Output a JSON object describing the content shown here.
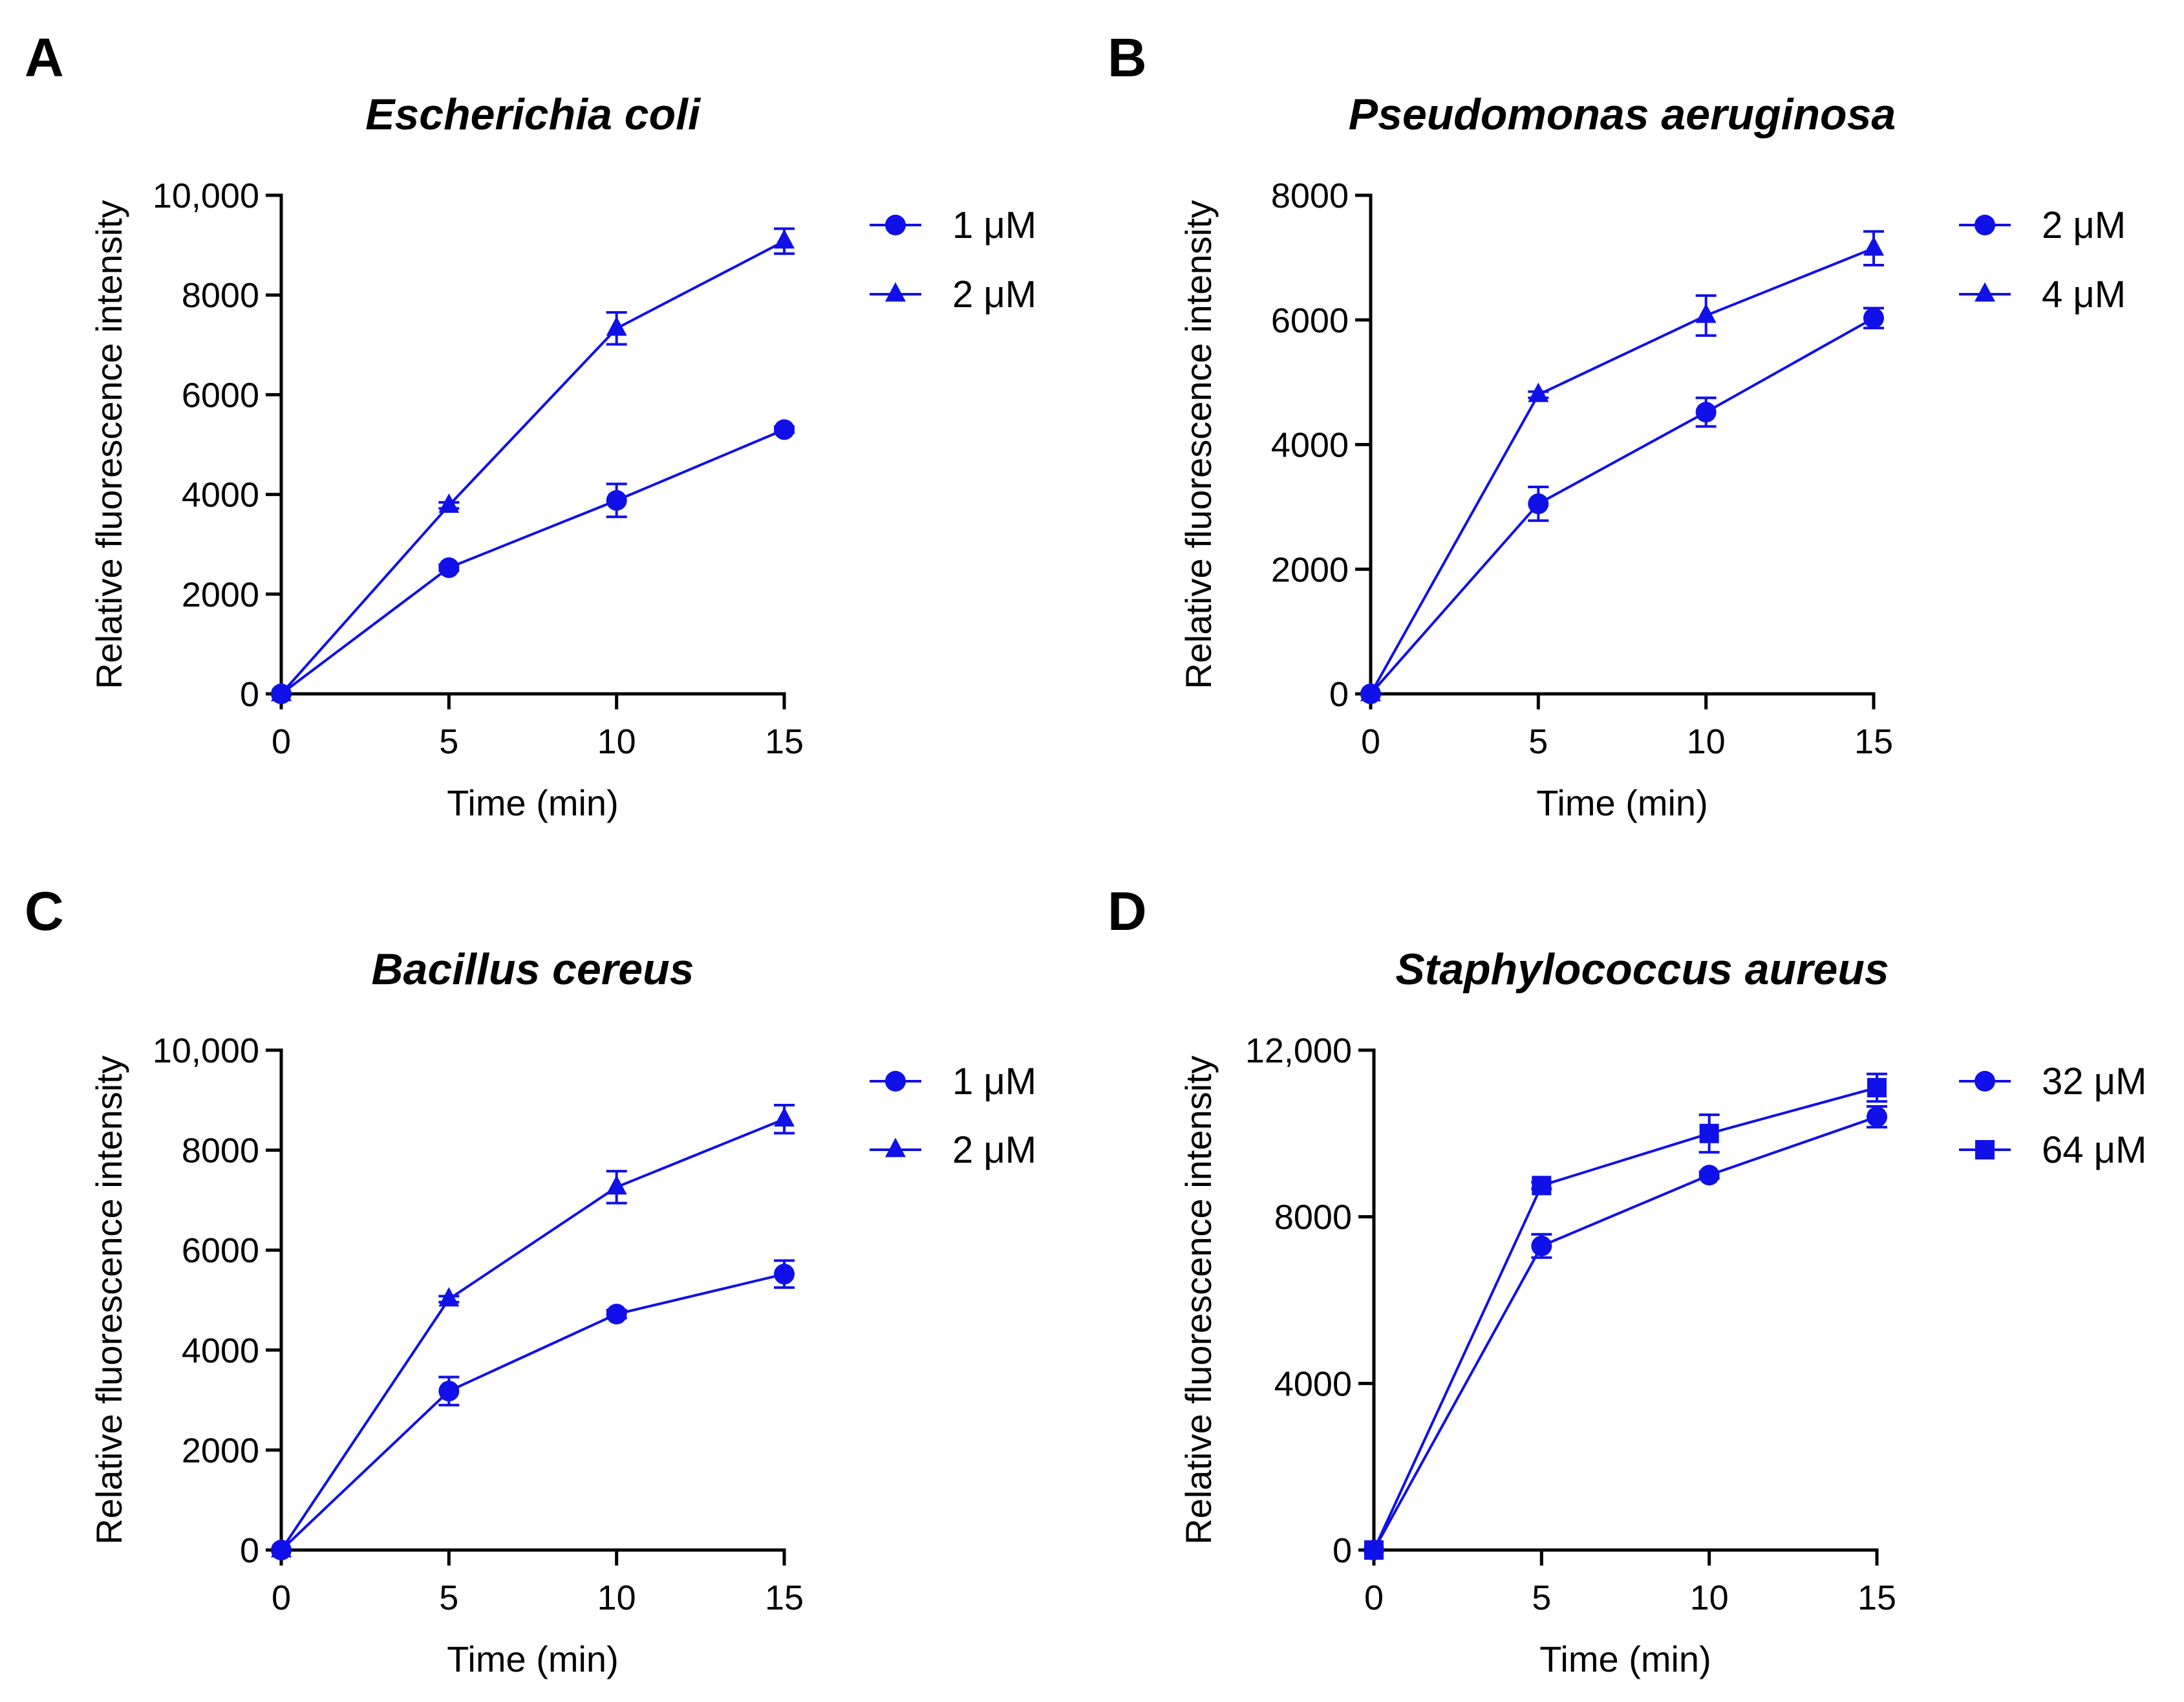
{
  "colors": {
    "series": "#1010E8",
    "axis": "#000000",
    "background": "#ffffff"
  },
  "chart_data": [
    {
      "panel": "A",
      "type": "line",
      "title": "Escherichia coli",
      "xlabel": "Time (min)",
      "ylabel": "Relative fluorescence intensity",
      "x": [
        0,
        5,
        10,
        15
      ],
      "xticks": [
        0,
        5,
        10,
        15
      ],
      "xtick_labels": [
        "0",
        "5",
        "10",
        "15"
      ],
      "xlim": [
        0,
        15
      ],
      "yticks": [
        0,
        2000,
        4000,
        6000,
        8000,
        10000
      ],
      "ytick_labels": [
        "0",
        "2000",
        "4000",
        "6000",
        "8000",
        "10,000"
      ],
      "ylim": [
        0,
        10000
      ],
      "grid": false,
      "legend_position": "right",
      "series": [
        {
          "name": "1 μM",
          "marker": "circle",
          "values": [
            0,
            2530,
            3880,
            5300
          ],
          "errors": [
            0,
            60,
            330,
            60
          ]
        },
        {
          "name": "2 μM",
          "marker": "triangle",
          "values": [
            0,
            3780,
            7330,
            9080
          ],
          "errors": [
            0,
            60,
            320,
            250
          ]
        }
      ]
    },
    {
      "panel": "B",
      "type": "line",
      "title": "Pseudomonas aeruginosa",
      "xlabel": "Time (min)",
      "ylabel": "Relative fluorescence intensity",
      "x": [
        0,
        5,
        10,
        15
      ],
      "xticks": [
        0,
        5,
        10,
        15
      ],
      "xtick_labels": [
        "0",
        "5",
        "10",
        "15"
      ],
      "xlim": [
        0,
        15
      ],
      "yticks": [
        0,
        2000,
        4000,
        6000,
        8000
      ],
      "ytick_labels": [
        "0",
        "2000",
        "4000",
        "6000",
        "8000"
      ],
      "ylim": [
        0,
        8000
      ],
      "grid": false,
      "legend_position": "right",
      "series": [
        {
          "name": "2 μM",
          "marker": "circle",
          "values": [
            0,
            3050,
            4520,
            6030
          ],
          "errors": [
            0,
            270,
            230,
            160
          ]
        },
        {
          "name": "4 μM",
          "marker": "triangle",
          "values": [
            0,
            4800,
            6070,
            7150
          ],
          "errors": [
            0,
            50,
            320,
            270
          ]
        }
      ]
    },
    {
      "panel": "C",
      "type": "line",
      "title": "Bacillus cereus",
      "xlabel": "Time (min)",
      "ylabel": "Relative fluorescence intensity",
      "x": [
        0,
        5,
        10,
        15
      ],
      "xticks": [
        0,
        5,
        10,
        15
      ],
      "xtick_labels": [
        "0",
        "5",
        "10",
        "15"
      ],
      "xlim": [
        0,
        15
      ],
      "yticks": [
        0,
        2000,
        4000,
        6000,
        8000,
        10000
      ],
      "ytick_labels": [
        "0",
        "2000",
        "4000",
        "6000",
        "8000",
        "10,000"
      ],
      "ylim": [
        0,
        10000
      ],
      "grid": false,
      "legend_position": "right",
      "series": [
        {
          "name": "1 μM",
          "marker": "circle",
          "values": [
            0,
            3180,
            4720,
            5520
          ],
          "errors": [
            0,
            280,
            80,
            270
          ]
        },
        {
          "name": "2 μM",
          "marker": "triangle",
          "values": [
            0,
            5020,
            7260,
            8620
          ],
          "errors": [
            0,
            60,
            320,
            280
          ]
        }
      ]
    },
    {
      "panel": "D",
      "type": "line",
      "title": "Staphylococcus aureus",
      "xlabel": "Time (min)",
      "ylabel": "Relative fluorescence intensity",
      "x": [
        0,
        5,
        10,
        15
      ],
      "xticks": [
        0,
        5,
        10,
        15
      ],
      "xtick_labels": [
        "0",
        "5",
        "10",
        "15"
      ],
      "xlim": [
        0,
        15
      ],
      "yticks": [
        0,
        4000,
        8000,
        12000
      ],
      "ytick_labels": [
        "0",
        "4000",
        "8000",
        "12,000"
      ],
      "ylim": [
        0,
        12000
      ],
      "grid": false,
      "legend_position": "right",
      "series": [
        {
          "name": "32 μM",
          "marker": "circle",
          "values": [
            0,
            7300,
            9000,
            10400
          ],
          "errors": [
            0,
            280,
            80,
            250
          ]
        },
        {
          "name": "64 μM",
          "marker": "square",
          "values": [
            0,
            8750,
            10000,
            11100
          ],
          "errors": [
            0,
            80,
            450,
            330
          ]
        }
      ]
    }
  ]
}
